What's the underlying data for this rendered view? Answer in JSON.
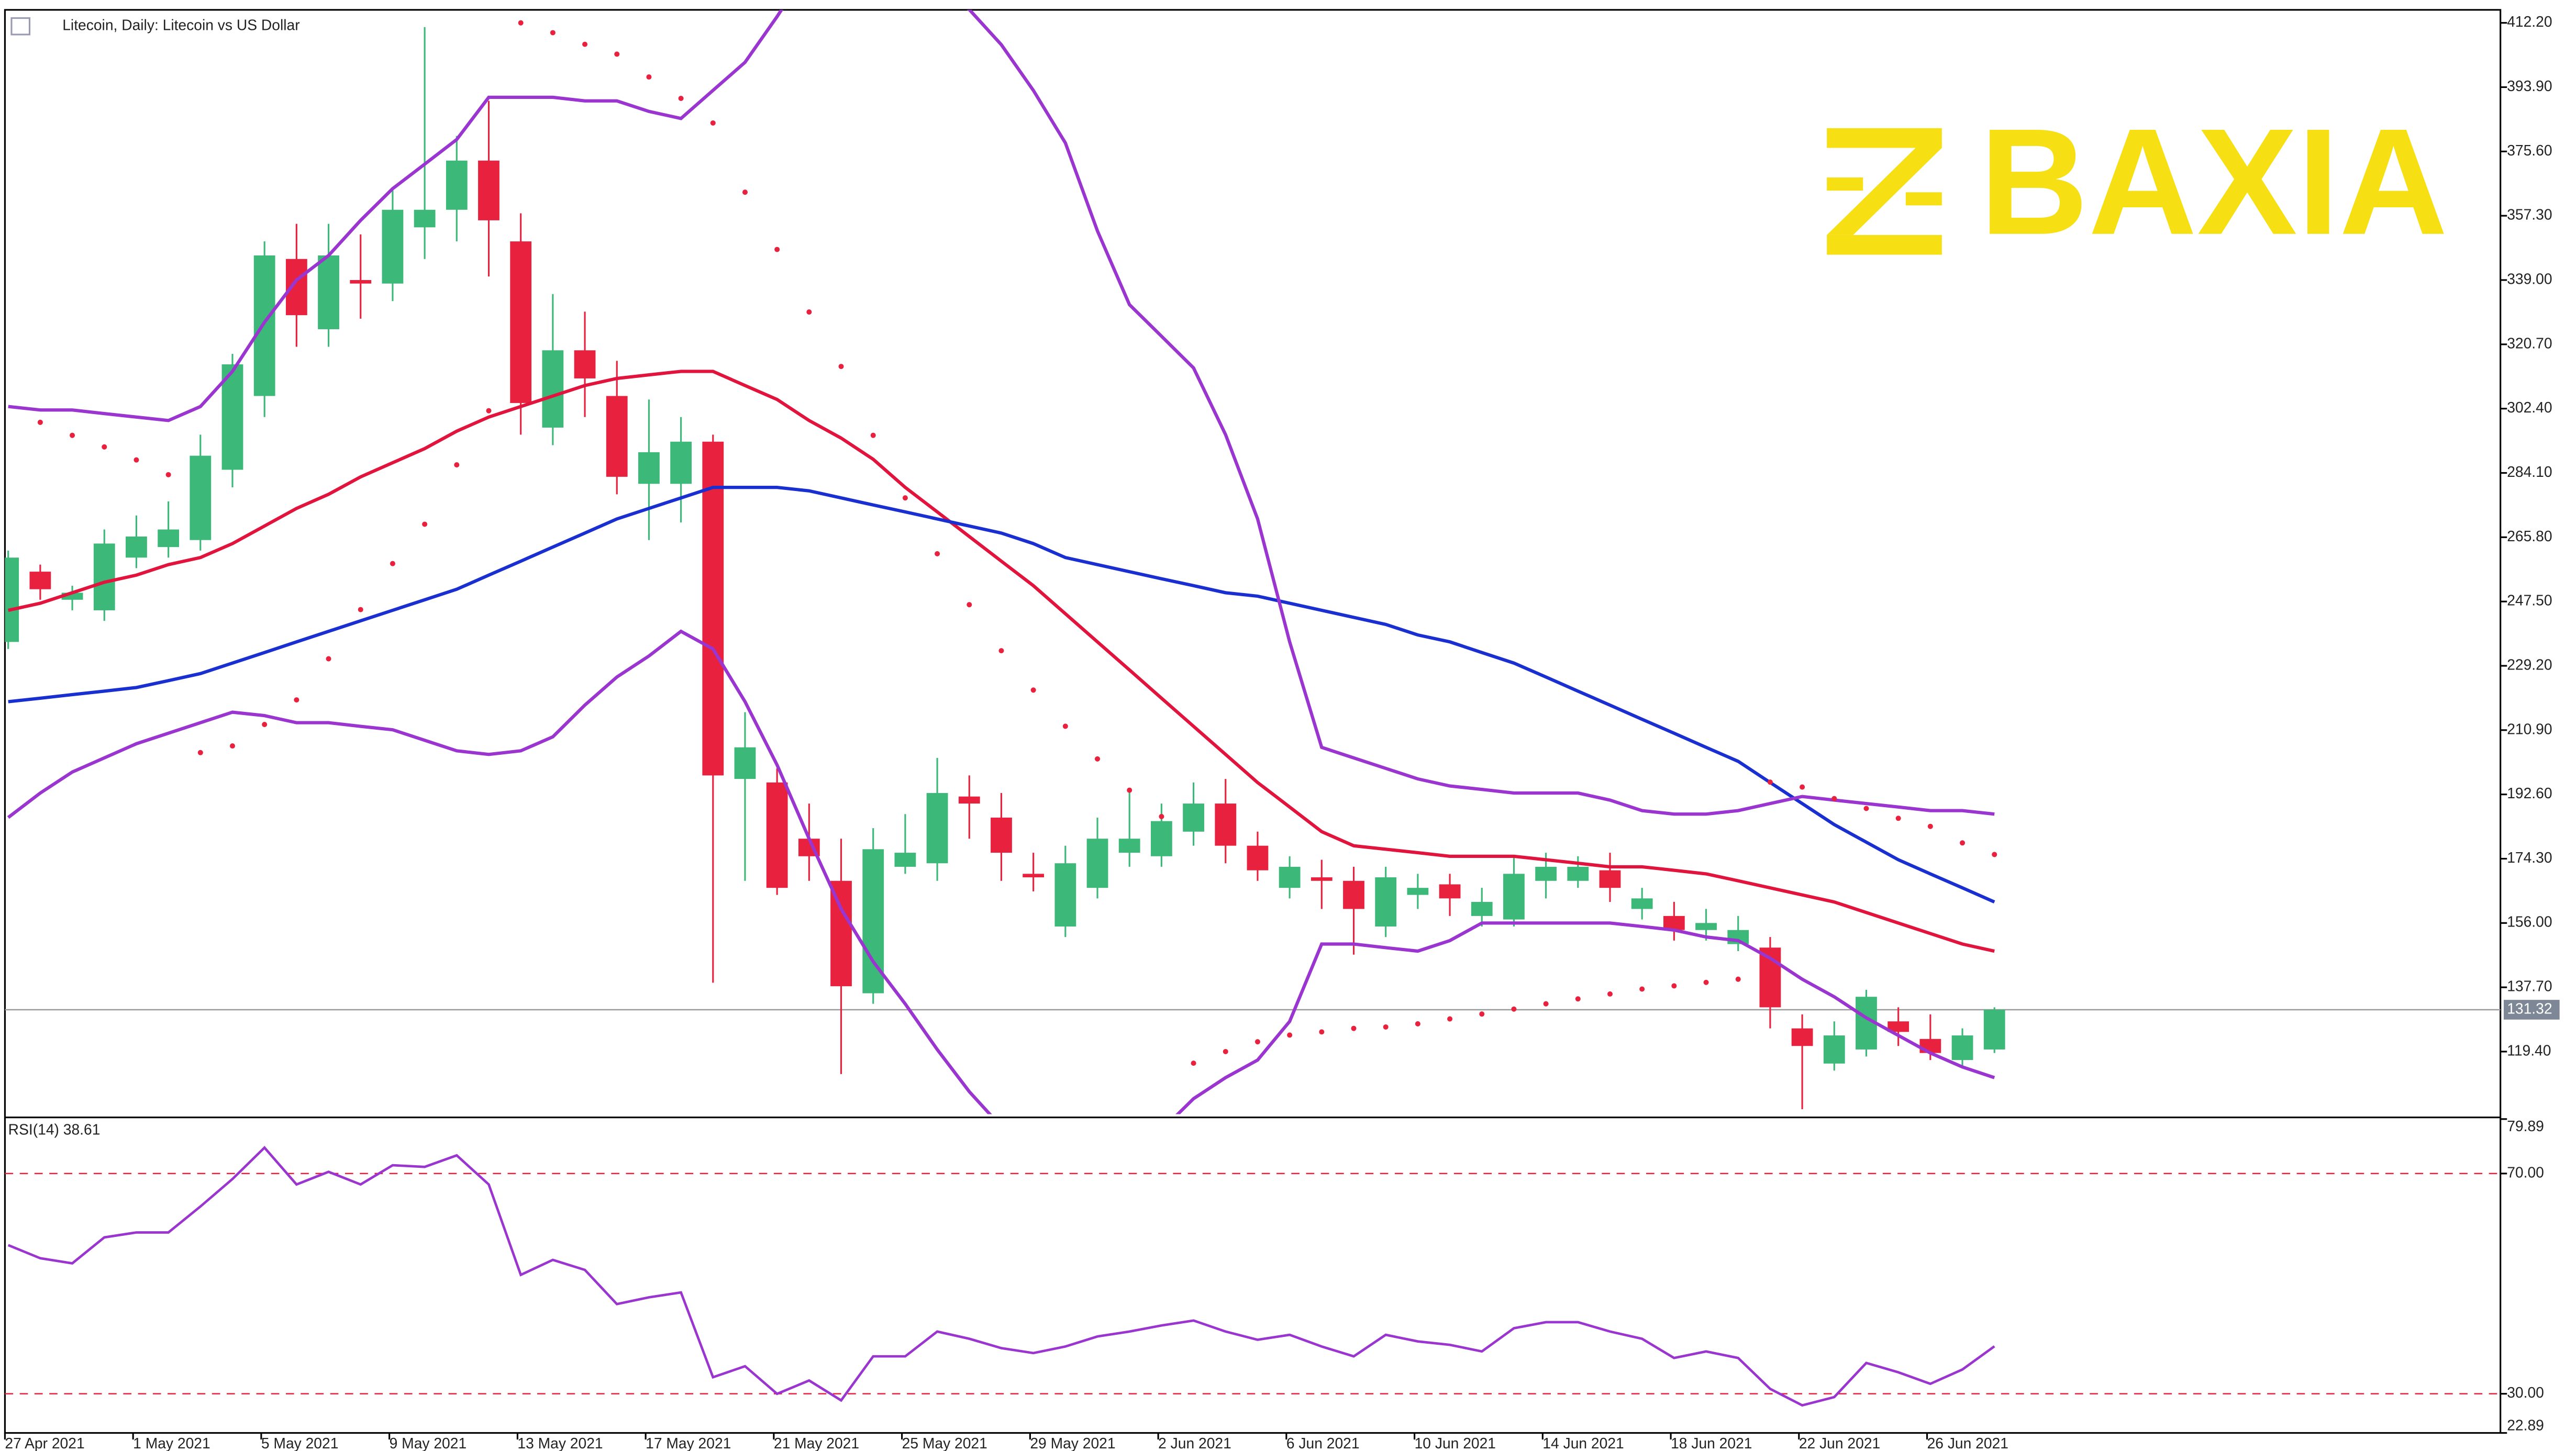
{
  "watermark": "BAXIA",
  "chart_data": [
    {
      "type": "candlestick",
      "title": "Litecoin, Daily:  Litecoin vs US Dollar",
      "categories": [
        "27 Apr 2021",
        null,
        null,
        null,
        "1 May 2021",
        null,
        null,
        null,
        "5 May 2021",
        null,
        null,
        null,
        "9 May 2021",
        null,
        null,
        null,
        "13 May 2021",
        null,
        null,
        null,
        "17 May 2021",
        null,
        null,
        null,
        "21 May 2021",
        null,
        null,
        null,
        "25 May 2021",
        null,
        null,
        null,
        "29 May 2021",
        null,
        null,
        null,
        "2 Jun 2021",
        null,
        null,
        null,
        "6 Jun 2021",
        null,
        null,
        null,
        "10 Jun 2021",
        null,
        null,
        null,
        "14 Jun 2021",
        null,
        null,
        null,
        "18 Jun 2021",
        null,
        null,
        null,
        "22 Jun 2021",
        null,
        null,
        null,
        "26 Jun 2021",
        null,
        null
      ],
      "open": [
        236,
        256,
        248,
        245,
        260,
        263,
        265,
        285,
        306,
        345,
        325,
        339,
        338,
        354,
        359,
        373,
        350,
        297,
        319,
        306,
        281,
        281,
        293,
        197,
        196,
        180,
        168,
        136,
        172,
        173,
        192,
        186,
        170,
        155,
        166,
        176,
        175,
        182,
        190,
        178,
        166,
        169,
        168,
        155,
        164,
        167,
        158,
        157,
        168,
        168,
        171,
        160,
        158,
        154,
        150,
        149,
        126,
        116,
        120,
        128,
        123,
        117,
        120
      ],
      "high": [
        262,
        258,
        252,
        268,
        272,
        276,
        295,
        318,
        350,
        355,
        355,
        352,
        365,
        411,
        380,
        390,
        358,
        335,
        330,
        316,
        305,
        300,
        295,
        216,
        200,
        190,
        180,
        183,
        187,
        203,
        198,
        193,
        176,
        178,
        186,
        194,
        190,
        196,
        197,
        182,
        175,
        174,
        172,
        172,
        170,
        170,
        166,
        175,
        176,
        175,
        176,
        166,
        162,
        160,
        158,
        152,
        130,
        128,
        137,
        132,
        130,
        126,
        132
      ],
      "low": [
        234,
        248,
        245,
        242,
        257,
        260,
        262,
        280,
        300,
        320,
        320,
        328,
        333,
        345,
        350,
        340,
        295,
        292,
        300,
        278,
        265,
        270,
        139,
        168,
        164,
        168,
        113,
        133,
        170,
        168,
        180,
        168,
        165,
        152,
        163,
        172,
        172,
        178,
        173,
        168,
        163,
        160,
        147,
        152,
        160,
        158,
        155,
        155,
        163,
        166,
        162,
        157,
        151,
        151,
        148,
        126,
        103,
        114,
        118,
        121,
        117,
        115,
        119
      ],
      "close": [
        260,
        251,
        250,
        264,
        266,
        268,
        289,
        315,
        346,
        329,
        346,
        338,
        359,
        359,
        373,
        356,
        304,
        319,
        311,
        283,
        290,
        293,
        198,
        206,
        166,
        175,
        138,
        177,
        176,
        193,
        190,
        176,
        169,
        173,
        180,
        180,
        185,
        190,
        178,
        171,
        172,
        168,
        160,
        169,
        166,
        163,
        162,
        170,
        172,
        172,
        166,
        163,
        154,
        156,
        154,
        132,
        121,
        124,
        135,
        125,
        119,
        124,
        131.32
      ],
      "up_color": "#3cb878",
      "down_color": "#e8213f",
      "lines": [
        {
          "color": "#e0143c",
          "values": [
            245,
            247,
            250,
            253,
            255,
            258,
            260,
            264,
            269,
            274,
            278,
            283,
            287,
            291,
            296,
            300,
            303,
            306,
            309,
            311,
            312,
            313,
            313,
            309,
            305,
            299,
            294,
            288,
            280,
            273,
            266,
            259,
            252,
            244,
            236,
            228,
            220,
            212,
            204,
            196,
            189,
            182,
            178,
            177,
            176,
            175,
            175,
            175,
            174,
            173,
            172,
            172,
            171,
            170,
            168,
            166,
            164,
            162,
            159,
            156,
            153,
            150,
            148
          ]
        },
        {
          "color": "#1a2fd0",
          "values": [
            219,
            220,
            221,
            222,
            223,
            225,
            227,
            230,
            233,
            236,
            239,
            242,
            245,
            248,
            251,
            255,
            259,
            263,
            267,
            271,
            274,
            277,
            280,
            280,
            280,
            279,
            277,
            275,
            273,
            271,
            269,
            267,
            264,
            260,
            258,
            256,
            254,
            252,
            250,
            249,
            247,
            245,
            243,
            241,
            238,
            236,
            233,
            230,
            226,
            222,
            218,
            214,
            210,
            206,
            202,
            196,
            190,
            184,
            179,
            174,
            170,
            166,
            162
          ]
        },
        {
          "color": "#9a35d0",
          "values": [
            303,
            302,
            302,
            301,
            300,
            299,
            303,
            313,
            327,
            339,
            346,
            356,
            365,
            372,
            379,
            391,
            391,
            391,
            390,
            390,
            387,
            385,
            393,
            401,
            414,
            428,
            430,
            430,
            428,
            422,
            416,
            406,
            393,
            378,
            353,
            332,
            323,
            314,
            295,
            271,
            236,
            206,
            203,
            200,
            197,
            195,
            194,
            193,
            193,
            193,
            191,
            188,
            187,
            187,
            188,
            190,
            192,
            191,
            190,
            189,
            188,
            188,
            187
          ]
        },
        {
          "color": "#9a35d0",
          "values": [
            186,
            193,
            199,
            203,
            207,
            210,
            213,
            216,
            215,
            213,
            213,
            212,
            211,
            208,
            205,
            204,
            205,
            209,
            218,
            226,
            232,
            239,
            234,
            219,
            201,
            180,
            160,
            145,
            133,
            120,
            108,
            98,
            92,
            88,
            87,
            90,
            97,
            106,
            112,
            117,
            128,
            150,
            150,
            149,
            148,
            151,
            156,
            156,
            156,
            156,
            156,
            155,
            154,
            152,
            151,
            146,
            140,
            135,
            129,
            124,
            119,
            115,
            112
          ]
        }
      ],
      "sar": {
        "color": "#e8213f",
        "values": [
          null,
          298.5,
          294.8,
          291.5,
          287.8,
          283.6,
          204.5,
          206.4,
          212.5,
          219.5,
          231.2,
          245.2,
          258.3,
          269.5,
          286.4,
          301.8,
          412.2,
          409.4,
          406.1,
          403.3,
          396.8,
          390.7,
          383.7,
          364.0,
          347.7,
          329.9,
          314.4,
          294.8,
          277.0,
          261.1,
          246.6,
          233.5,
          222.3,
          212.0,
          202.7,
          193.8,
          186.3,
          116.1,
          119.4,
          122.2,
          124.1,
          125.0,
          126.0,
          126.4,
          127.3,
          128.7,
          130.1,
          131.5,
          133.0,
          134.4,
          135.8,
          137.2,
          138.1,
          139.1,
          140.0,
          196.1,
          194.7,
          191.4,
          188.6,
          185.8,
          183.5,
          178.8,
          175.5
        ]
      },
      "last_price": 131.32,
      "ylim": [
        101.6,
        415.9
      ],
      "yticks": [
        {
          "value": 119.4,
          "label": "119.40"
        },
        {
          "value": 137.7,
          "label": "137.70"
        },
        {
          "value": 156,
          "label": "156.00"
        },
        {
          "value": 174.3,
          "label": "174.30"
        },
        {
          "value": 192.6,
          "label": "192.60"
        },
        {
          "value": 210.9,
          "label": "210.90"
        },
        {
          "value": 229.2,
          "label": "229.20"
        },
        {
          "value": 247.5,
          "label": "247.50"
        },
        {
          "value": 265.8,
          "label": "265.80"
        },
        {
          "value": 284.1,
          "label": "284.10"
        },
        {
          "value": 302.4,
          "label": "302.40"
        },
        {
          "value": 320.7,
          "label": "320.70"
        },
        {
          "value": 339,
          "label": "339.00"
        },
        {
          "value": 357.3,
          "label": "357.30"
        },
        {
          "value": 375.6,
          "label": "375.60"
        },
        {
          "value": 393.9,
          "label": "393.90"
        },
        {
          "value": 412.2,
          "label": "412.20"
        }
      ]
    },
    {
      "type": "line",
      "title": "RSI(14) 38.61",
      "color": "#9a35d0",
      "values": [
        57,
        54.6,
        53.7,
        58.4,
        59.3,
        59.3,
        64,
        69,
        74.7,
        68,
        70.3,
        68,
        71.5,
        71.2,
        73.3,
        68,
        51.6,
        54.3,
        52.5,
        46.3,
        47.5,
        48.4,
        33,
        35,
        30,
        32.4,
        28.8,
        36.8,
        36.8,
        41.3,
        40,
        38.3,
        37.4,
        38.6,
        40.4,
        41.3,
        42.4,
        43.3,
        41.3,
        39.8,
        40.7,
        38.6,
        36.8,
        40.7,
        39.5,
        38.9,
        37.7,
        41.9,
        43,
        43,
        41.3,
        40,
        36.5,
        37.7,
        36.5,
        30.9,
        27.9,
        29.4,
        35.6,
        33.9,
        31.8,
        34.4,
        38.61
      ],
      "levels": [
        70,
        30
      ],
      "level_color": "#e8213f",
      "ylim": [
        22.89,
        79.89
      ],
      "yticks": [
        22.89,
        {
          "value": 30,
          "label": "30.00"
        },
        {
          "value": 70,
          "label": "70.00"
        },
        79.89
      ]
    }
  ]
}
